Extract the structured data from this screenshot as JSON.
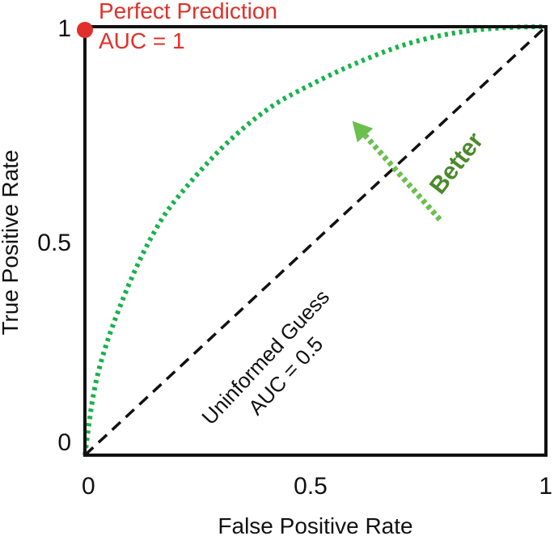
{
  "colors": {
    "frame": "#111111",
    "roc_curve": "#17b34a",
    "diagonal": "#111111",
    "perfect_point": "#e0302a",
    "perfect_text": "#e0302a",
    "better_text": "#4a8a2a",
    "better_arrow": "#6bbf4e"
  },
  "chart_data": {
    "type": "line",
    "xlabel": "False Positive Rate",
    "ylabel": "True Positive Rate",
    "xlim": [
      0,
      1
    ],
    "ylim": [
      0,
      1
    ],
    "x_ticks": [
      {
        "value": 0,
        "label": "0"
      },
      {
        "value": 0.5,
        "label": "0.5"
      },
      {
        "value": 1,
        "label": "1"
      }
    ],
    "y_ticks": [
      {
        "value": 0,
        "label": "0"
      },
      {
        "value": 0.5,
        "label": "0.5"
      },
      {
        "value": 1,
        "label": "1"
      }
    ],
    "grid": false,
    "series": [
      {
        "style": "dotted",
        "x": [
          0,
          0.02,
          0.05,
          0.1,
          0.15,
          0.2,
          0.3,
          0.4,
          0.5,
          0.6,
          0.7,
          0.8,
          0.9,
          1.0
        ],
        "y": [
          0,
          0.15,
          0.27,
          0.41,
          0.52,
          0.6,
          0.72,
          0.81,
          0.87,
          0.92,
          0.96,
          0.985,
          0.997,
          1.0
        ]
      },
      {
        "style": "dashed",
        "x": [
          0,
          1
        ],
        "y": [
          0,
          1
        ]
      }
    ],
    "points": [
      {
        "x": 0,
        "y": 1
      }
    ],
    "annotations": {
      "perfect_title": "Perfect Prediction",
      "perfect_auc": "AUC = 1",
      "random_title": "Uninformed Guess",
      "random_auc": "AUC = 0.5",
      "better": "Better"
    },
    "arrow": {
      "from": [
        0.77,
        0.55
      ],
      "to": [
        0.58,
        0.78
      ]
    }
  }
}
